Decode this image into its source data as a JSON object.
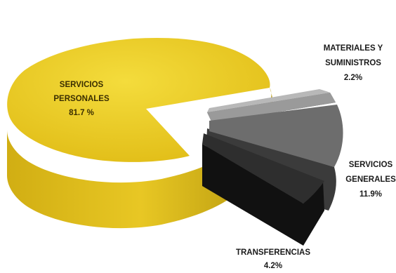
{
  "chart_data": {
    "type": "pie",
    "title": "",
    "slices": [
      {
        "label_lines": [
          "SERVICIOS",
          "PERSONALES"
        ],
        "percent_label": "81.7 %",
        "value": 81.7,
        "color": "#e6c21c"
      },
      {
        "label_lines": [
          "MATERIALES Y",
          "SUMINISTROS"
        ],
        "percent_label": "2.2%",
        "value": 2.2,
        "color": "#8f8f8f"
      },
      {
        "label_lines": [
          "SERVICIOS",
          "GENERALES"
        ],
        "percent_label": "11.9%",
        "value": 11.9,
        "color": "#5e5e5e"
      },
      {
        "label_lines": [
          "TRANSFERENCIAS"
        ],
        "percent_label": "4.2%",
        "value": 4.2,
        "color": "#262626"
      }
    ],
    "style": "3d-exploded",
    "legend": "none"
  }
}
